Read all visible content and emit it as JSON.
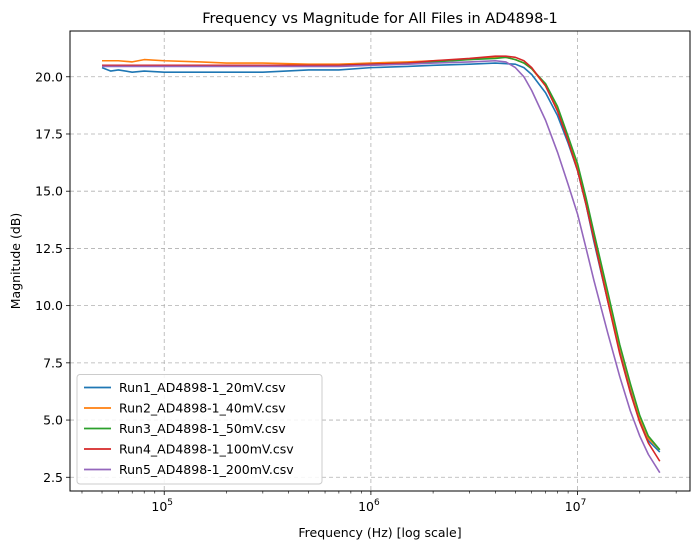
{
  "chart_data": {
    "type": "line",
    "title": "Frequency vs Magnitude for All Files in AD4898-1",
    "xlabel": "Frequency (Hz) [log scale]",
    "ylabel": "Magnitude (dB)",
    "x_scale": "log",
    "xlim": [
      35000,
      35000000
    ],
    "ylim": [
      1.9,
      22.0
    ],
    "x_ticks": [
      {
        "value": 100000,
        "base": "10",
        "exp": "5"
      },
      {
        "value": 1000000,
        "base": "10",
        "exp": "6"
      },
      {
        "value": 10000000,
        "base": "10",
        "exp": "7"
      }
    ],
    "y_ticks": [
      2.5,
      5.0,
      7.5,
      10.0,
      12.5,
      15.0,
      17.5,
      20.0
    ],
    "y_tick_labels": [
      "2.5",
      "5.0",
      "7.5",
      "10.0",
      "12.5",
      "15.0",
      "17.5",
      "20.0"
    ],
    "grid": true,
    "grid_style": "dashed",
    "legend_position": "lower-left",
    "series": [
      {
        "name": "Run1_AD4898-1_20mV.csv",
        "color": "#1f77b4",
        "x": [
          50000,
          55000,
          60000,
          70000,
          80000,
          100000,
          150000,
          200000,
          300000,
          500000,
          700000,
          1000000,
          1500000,
          2000000,
          3000000,
          4000000,
          5000000,
          5500000,
          6000000,
          7000000,
          8000000,
          9000000,
          10000000,
          11000000,
          12000000,
          14000000,
          16000000,
          18000000,
          20000000,
          22000000,
          25000000
        ],
        "y": [
          20.4,
          20.25,
          20.3,
          20.2,
          20.25,
          20.2,
          20.2,
          20.2,
          20.2,
          20.3,
          20.3,
          20.4,
          20.45,
          20.5,
          20.55,
          20.6,
          20.55,
          20.4,
          20.1,
          19.3,
          18.3,
          17.1,
          15.9,
          14.4,
          12.8,
          10.2,
          8.0,
          6.3,
          5.0,
          4.1,
          3.6
        ]
      },
      {
        "name": "Run2_AD4898-1_40mV.csv",
        "color": "#ff7f0e",
        "x": [
          50000,
          60000,
          70000,
          80000,
          100000,
          150000,
          200000,
          300000,
          500000,
          700000,
          1000000,
          1500000,
          2000000,
          3000000,
          4000000,
          4500000,
          5000000,
          5500000,
          6000000,
          7000000,
          8000000,
          9000000,
          10000000,
          11000000,
          12000000,
          14000000,
          16000000,
          18000000,
          20000000,
          22000000,
          25000000
        ],
        "y": [
          20.7,
          20.7,
          20.65,
          20.75,
          20.7,
          20.65,
          20.6,
          20.6,
          20.55,
          20.55,
          20.6,
          20.65,
          20.7,
          20.75,
          20.85,
          20.85,
          20.75,
          20.6,
          20.35,
          19.6,
          18.6,
          17.3,
          16.1,
          14.6,
          13.0,
          10.4,
          8.2,
          6.5,
          5.1,
          4.2,
          3.7
        ]
      },
      {
        "name": "Run3_AD4898-1_50mV.csv",
        "color": "#2ca02c",
        "x": [
          50000,
          70000,
          100000,
          150000,
          200000,
          300000,
          500000,
          700000,
          1000000,
          1500000,
          2000000,
          3000000,
          4000000,
          4500000,
          5000000,
          5500000,
          6000000,
          7000000,
          8000000,
          9000000,
          10000000,
          11000000,
          12000000,
          14000000,
          16000000,
          18000000,
          20000000,
          22000000,
          25000000
        ],
        "y": [
          20.5,
          20.5,
          20.5,
          20.5,
          20.5,
          20.5,
          20.5,
          20.5,
          20.55,
          20.6,
          20.65,
          20.75,
          20.8,
          20.85,
          20.75,
          20.6,
          20.35,
          19.7,
          18.7,
          17.4,
          16.2,
          14.7,
          13.2,
          10.6,
          8.3,
          6.6,
          5.2,
          4.3,
          3.7
        ]
      },
      {
        "name": "Run4_AD4898-1_100mV.csv",
        "color": "#d62728",
        "x": [
          50000,
          70000,
          100000,
          150000,
          200000,
          300000,
          500000,
          700000,
          1000000,
          1500000,
          2000000,
          3000000,
          4000000,
          4500000,
          5000000,
          5500000,
          6000000,
          7000000,
          8000000,
          9000000,
          10000000,
          11000000,
          12000000,
          14000000,
          16000000,
          18000000,
          20000000,
          22000000,
          25000000
        ],
        "y": [
          20.5,
          20.5,
          20.5,
          20.5,
          20.5,
          20.5,
          20.5,
          20.5,
          20.55,
          20.6,
          20.7,
          20.8,
          20.9,
          20.9,
          20.85,
          20.7,
          20.4,
          19.6,
          18.5,
          17.2,
          15.9,
          14.4,
          12.9,
          10.2,
          7.9,
          6.2,
          4.9,
          4.0,
          3.2
        ]
      },
      {
        "name": "Run5_AD4898-1_200mV.csv",
        "color": "#9467bd",
        "x": [
          50000,
          70000,
          100000,
          150000,
          200000,
          300000,
          500000,
          700000,
          1000000,
          1500000,
          2000000,
          3000000,
          4000000,
          4500000,
          5000000,
          5500000,
          6000000,
          7000000,
          8000000,
          9000000,
          10000000,
          11000000,
          12000000,
          14000000,
          16000000,
          18000000,
          20000000,
          22000000,
          25000000
        ],
        "y": [
          20.45,
          20.45,
          20.45,
          20.45,
          20.45,
          20.45,
          20.45,
          20.45,
          20.5,
          20.55,
          20.6,
          20.65,
          20.7,
          20.65,
          20.4,
          20.0,
          19.4,
          18.1,
          16.7,
          15.3,
          14.0,
          12.5,
          11.1,
          8.8,
          6.9,
          5.4,
          4.3,
          3.5,
          2.7
        ]
      }
    ]
  }
}
